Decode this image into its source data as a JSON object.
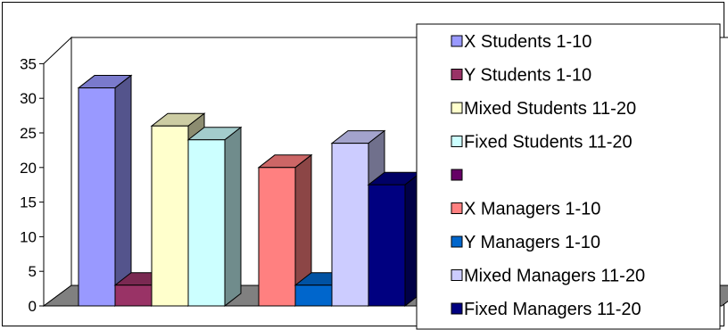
{
  "chart_data": {
    "type": "bar",
    "title": "",
    "xlabel": "",
    "ylabel": "",
    "ylim": [
      0,
      35
    ],
    "yticks": [
      "0",
      "5",
      "10",
      "15",
      "20",
      "25",
      "30",
      "35"
    ],
    "grid": false,
    "legend_position": "right",
    "groups": [
      {
        "bars": [
          {
            "series": "X Students 1-10",
            "value": 31.5,
            "color": "#9999FF"
          },
          {
            "series": "Y Students 1-10",
            "value": 3,
            "color": "#993366"
          },
          {
            "series": "Mixed Students 11-20",
            "value": 26,
            "color": "#FFFFCC"
          },
          {
            "series": "Fixed Students 11-20",
            "value": 24,
            "color": "#CCFFFF"
          }
        ]
      },
      {
        "bars": [
          {
            "series": "X Managers 1-10",
            "value": 20,
            "color": "#FF8080"
          },
          {
            "series": "Y Managers 1-10",
            "value": 3,
            "color": "#0066CC"
          },
          {
            "series": "Mixed Managers 11-20",
            "value": 23.5,
            "color": "#CCCCFF"
          },
          {
            "series": "Fixed Managers 11-20",
            "value": 17.5,
            "color": "#000080"
          }
        ]
      }
    ],
    "legend": [
      {
        "label": "X Students 1-10",
        "color": "#9999FF"
      },
      {
        "label": "Y Students 1-10",
        "color": "#993366"
      },
      {
        "label": "Mixed Students 11-20",
        "color": "#FFFFCC"
      },
      {
        "label": "Fixed Students 11-20",
        "color": "#CCFFFF"
      },
      {
        "label": "",
        "color": "#660066"
      },
      {
        "label": "X Managers  1-10",
        "color": "#FF8080"
      },
      {
        "label": "Y Managers 1-10",
        "color": "#0066CC"
      },
      {
        "label": "Mixed Managers 11-20",
        "color": "#CCCCFF"
      },
      {
        "label": "Fixed Managers 11-20",
        "color": "#000080"
      }
    ]
  }
}
